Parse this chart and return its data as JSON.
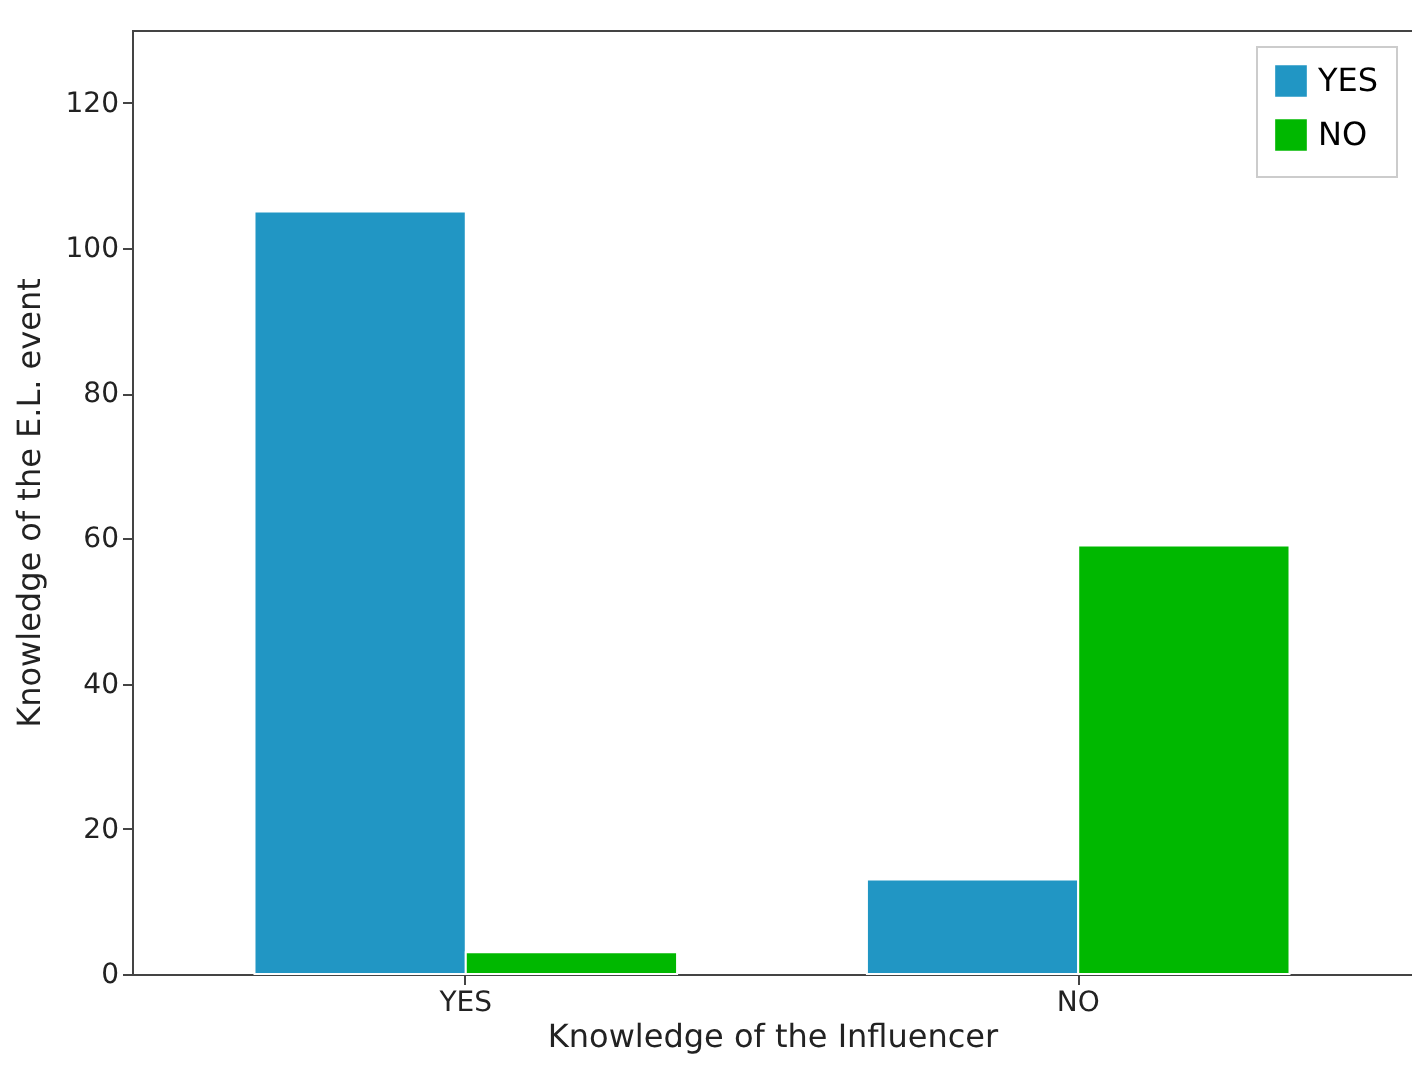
{
  "chart_data": {
    "type": "bar",
    "xlabel": "Knowledge of the Influencer",
    "ylabel": "Knowledge of the E.L. event",
    "categories": [
      "YES",
      "NO"
    ],
    "series": [
      {
        "name": "YES",
        "color": "#2196c4",
        "values": [
          105,
          13
        ]
      },
      {
        "name": "NO",
        "color": "#00b800",
        "values": [
          3,
          59
        ]
      }
    ],
    "ylim": [
      0,
      130
    ],
    "yticks": [
      0,
      20,
      40,
      60,
      80,
      100,
      120
    ],
    "legend": "top right",
    "grid": false
  }
}
